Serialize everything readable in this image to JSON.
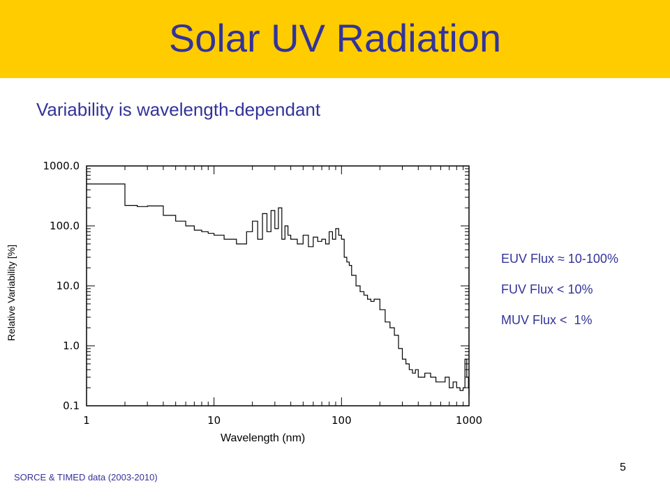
{
  "slide": {
    "title": "Solar UV Radiation",
    "subtitle": "Variability is wavelength-dependant",
    "notes": [
      "EUV Flux ≈ 10-100%",
      "FUV Flux < 10%",
      "MUV Flux <  1%"
    ],
    "source": "SORCE & TIMED data (2003-2010)",
    "page_number": "5"
  },
  "colors": {
    "title_bar": "#ffcc00",
    "title_text": "#333399",
    "line": "#000000"
  },
  "chart_data": {
    "type": "line",
    "xlabel": "Wavelength (nm)",
    "ylabel": "Relative Variability [%]",
    "xscale": "log",
    "yscale": "log",
    "xlim": [
      1,
      1000
    ],
    "ylim": [
      0.1,
      1000
    ],
    "xticks": [
      "1",
      "10",
      "100",
      "1000"
    ],
    "yticks": [
      "1000.0",
      "100.0",
      "10.0",
      "1.0",
      "0.1"
    ],
    "grid": false,
    "series": [
      {
        "step": true,
        "x": [
          1,
          2,
          2.5,
          3,
          4,
          5,
          6,
          7,
          8,
          9,
          10,
          12,
          15,
          18,
          20,
          22,
          24,
          26,
          28,
          30,
          32,
          34,
          36,
          38,
          40,
          45,
          50,
          55,
          60,
          65,
          70,
          75,
          80,
          85,
          90,
          95,
          100,
          105,
          110,
          115,
          120,
          130,
          140,
          150,
          160,
          170,
          180,
          200,
          220,
          240,
          260,
          280,
          300,
          320,
          340,
          360,
          380,
          400,
          450,
          500,
          550,
          600,
          650,
          700,
          750,
          800,
          850,
          900,
          930,
          960,
          990,
          1000
        ],
        "y": [
          500,
          220,
          210,
          215,
          150,
          120,
          100,
          85,
          80,
          75,
          70,
          60,
          50,
          80,
          120,
          60,
          160,
          80,
          180,
          90,
          200,
          60,
          100,
          70,
          60,
          50,
          70,
          45,
          65,
          55,
          60,
          50,
          80,
          60,
          90,
          70,
          60,
          30,
          25,
          22,
          15,
          10,
          8,
          7,
          6,
          5.5,
          6,
          4,
          2.5,
          2,
          1.5,
          0.9,
          0.6,
          0.5,
          0.4,
          0.35,
          0.4,
          0.3,
          0.35,
          0.3,
          0.25,
          0.25,
          0.3,
          0.2,
          0.25,
          0.2,
          0.18,
          0.2,
          0.6,
          0.3,
          0.2,
          0.15
        ]
      }
    ]
  }
}
